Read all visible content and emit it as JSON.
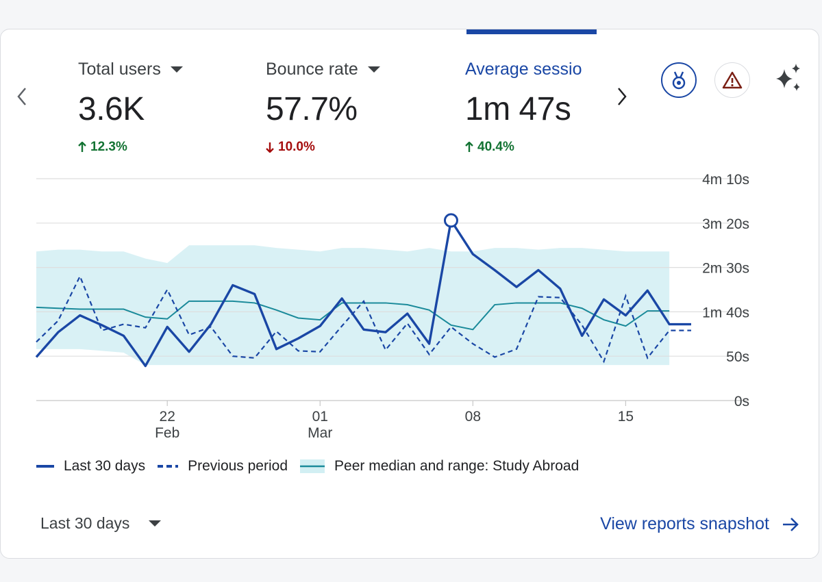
{
  "metrics": [
    {
      "title": "Total users",
      "value": "3.6K",
      "change": "12.3%",
      "direction": "up",
      "active": false
    },
    {
      "title": "Bounce rate",
      "value": "57.7%",
      "change": "10.0%",
      "direction": "down",
      "active": false
    },
    {
      "title": "Average sessio",
      "value": "1m 47s",
      "change": "40.4%",
      "direction": "up",
      "active": true
    }
  ],
  "icons": {
    "prev": "chevron-left-icon",
    "next": "chevron-right-icon",
    "benchmark": "benchmark-medal-icon",
    "warning": "warning-icon",
    "insights": "sparkle-icon"
  },
  "colors": {
    "primary": "#1a47a5",
    "peer_line": "#1a8a9a",
    "peer_band": "#d2eff3",
    "up": "#137333",
    "down": "#a50e0e"
  },
  "chart_data": {
    "type": "line",
    "y_unit": "seconds",
    "ylim": [
      0,
      250
    ],
    "y_ticks": [
      "0s",
      "50s",
      "1m 40s",
      "2m 30s",
      "3m 20s",
      "4m 10s"
    ],
    "y_tick_values": [
      0,
      50,
      100,
      150,
      200,
      250
    ],
    "x_tick_labels": [
      {
        "day": 9,
        "line1": "22",
        "line2": "Feb"
      },
      {
        "day": 16,
        "line1": "01",
        "line2": "Mar"
      },
      {
        "day": 23,
        "line1": "08",
        "line2": ""
      },
      {
        "day": 30,
        "line1": "15",
        "line2": ""
      }
    ],
    "series": [
      {
        "name": "Last 30 days",
        "style": "solid",
        "x": [
          3,
          4,
          5,
          6,
          7,
          8,
          9,
          10,
          11,
          12,
          13,
          14,
          15,
          16,
          17,
          18,
          19,
          20,
          21,
          22,
          23,
          24,
          25,
          26,
          27,
          28,
          29,
          30,
          31,
          32,
          33
        ],
        "y": [
          49,
          77,
          96,
          85,
          73,
          39,
          83,
          55,
          86,
          130,
          120,
          58,
          70,
          84,
          115,
          80,
          77,
          98,
          64,
          203,
          165,
          147,
          128,
          147,
          126,
          73,
          114,
          96,
          124,
          86,
          86
        ]
      },
      {
        "name": "Previous period",
        "style": "dashed",
        "x": [
          3,
          4,
          5,
          6,
          7,
          8,
          9,
          10,
          11,
          12,
          13,
          14,
          15,
          16,
          17,
          18,
          19,
          20,
          21,
          22,
          23,
          24,
          25,
          26,
          27,
          28,
          29,
          30,
          31,
          32,
          33
        ],
        "y": [
          66,
          90,
          140,
          79,
          86,
          82,
          125,
          74,
          83,
          50,
          48,
          78,
          56,
          55,
          84,
          112,
          57,
          87,
          52,
          83,
          64,
          49,
          58,
          117,
          116,
          85,
          44,
          118,
          48,
          79,
          79
        ]
      },
      {
        "name": "Peer median and range: Study Abroad",
        "style": "band",
        "x": [
          3,
          4,
          5,
          6,
          7,
          8,
          9,
          10,
          11,
          12,
          13,
          14,
          15,
          16,
          17,
          18,
          19,
          20,
          21,
          22,
          23,
          24,
          25,
          26,
          27,
          28,
          29,
          30,
          31,
          32
        ],
        "median": [
          105,
          104,
          103,
          103,
          103,
          94,
          92,
          112,
          112,
          112,
          110,
          102,
          93,
          91,
          110,
          110,
          110,
          108,
          102,
          85,
          80,
          108,
          110,
          110,
          110,
          104,
          91,
          84,
          101,
          101
        ],
        "lower": [
          58,
          58,
          58,
          56,
          54,
          40,
          40,
          40,
          40,
          40,
          40,
          40,
          40,
          40,
          40,
          40,
          40,
          40,
          40,
          40,
          40,
          40,
          40,
          40,
          40,
          40,
          40,
          40,
          40,
          40
        ],
        "upper": [
          168,
          170,
          170,
          168,
          168,
          160,
          155,
          175,
          175,
          175,
          175,
          172,
          170,
          168,
          172,
          172,
          170,
          168,
          172,
          168,
          168,
          172,
          172,
          170,
          172,
          172,
          170,
          168,
          168,
          168
        ]
      }
    ],
    "highlight": {
      "day": 22,
      "value": 203
    }
  },
  "footer": {
    "range_label": "Last 30 days",
    "link_label": "View reports snapshot"
  }
}
